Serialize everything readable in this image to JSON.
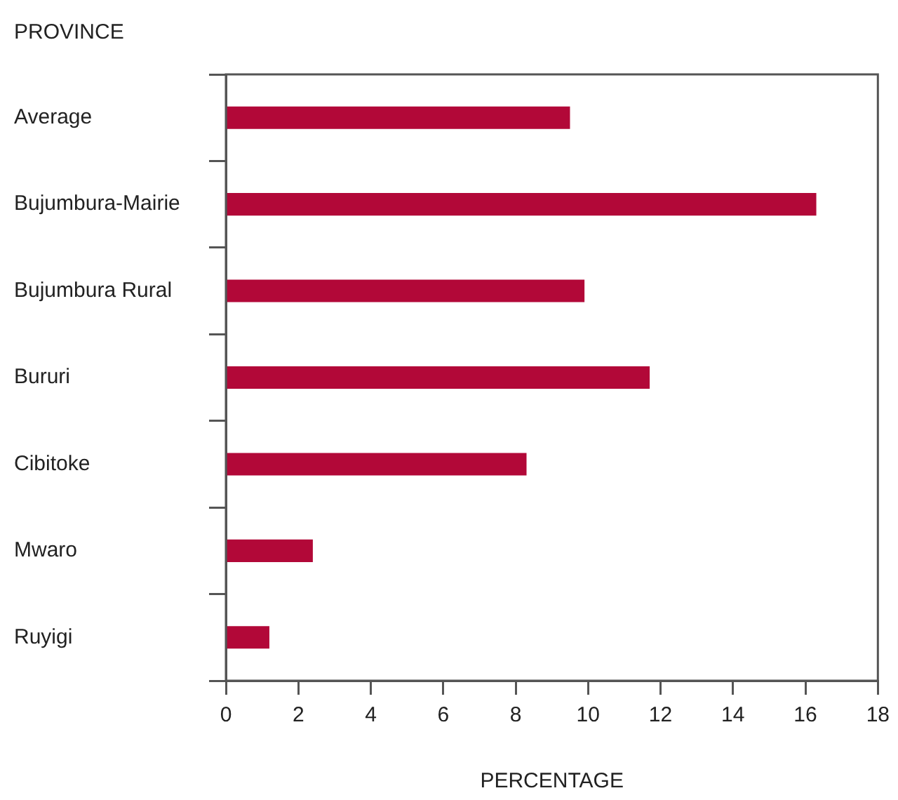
{
  "chart_data": {
    "type": "bar",
    "orientation": "horizontal",
    "ylabel": "PROVINCE",
    "xlabel": "PERCENTAGE",
    "categories": [
      "Average",
      "Bujumbura-Mairie",
      "Bujumbura Rural",
      "Bururi",
      "Cibitoke",
      "Mwaro",
      "Ruyigi"
    ],
    "values": [
      9.5,
      16.3,
      9.9,
      11.7,
      8.3,
      2.4,
      1.2
    ],
    "color": "#b20838",
    "xlim": [
      0,
      18
    ],
    "xticks": [
      0,
      2,
      4,
      6,
      8,
      10,
      12,
      14,
      16,
      18
    ],
    "grid": false,
    "legend": false
  }
}
